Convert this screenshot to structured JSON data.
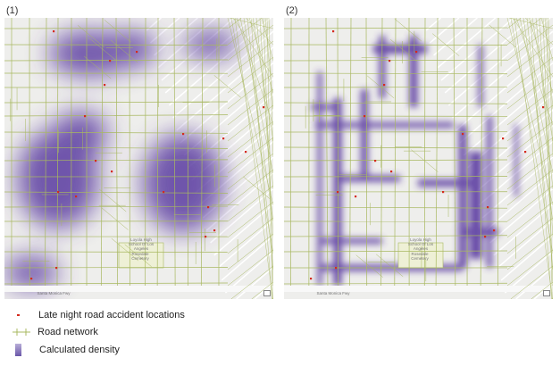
{
  "panels": [
    {
      "label": "(1)",
      "style": "smooth"
    },
    {
      "label": "(2)",
      "style": "network"
    }
  ],
  "map_labels": {
    "school": "Loyola High School Of Los Angeles",
    "cemetery": "Rosedale Cemetery",
    "freeway": "Santa Monica Fwy"
  },
  "legend": {
    "accidents": "Late night road accident locations",
    "roads": "Road network",
    "density": "Calculated density"
  },
  "colors": {
    "accident": "#d42a1e",
    "road": "#a8b860",
    "density": "#5a3aa0",
    "cemetery": "#eef0d6"
  }
}
